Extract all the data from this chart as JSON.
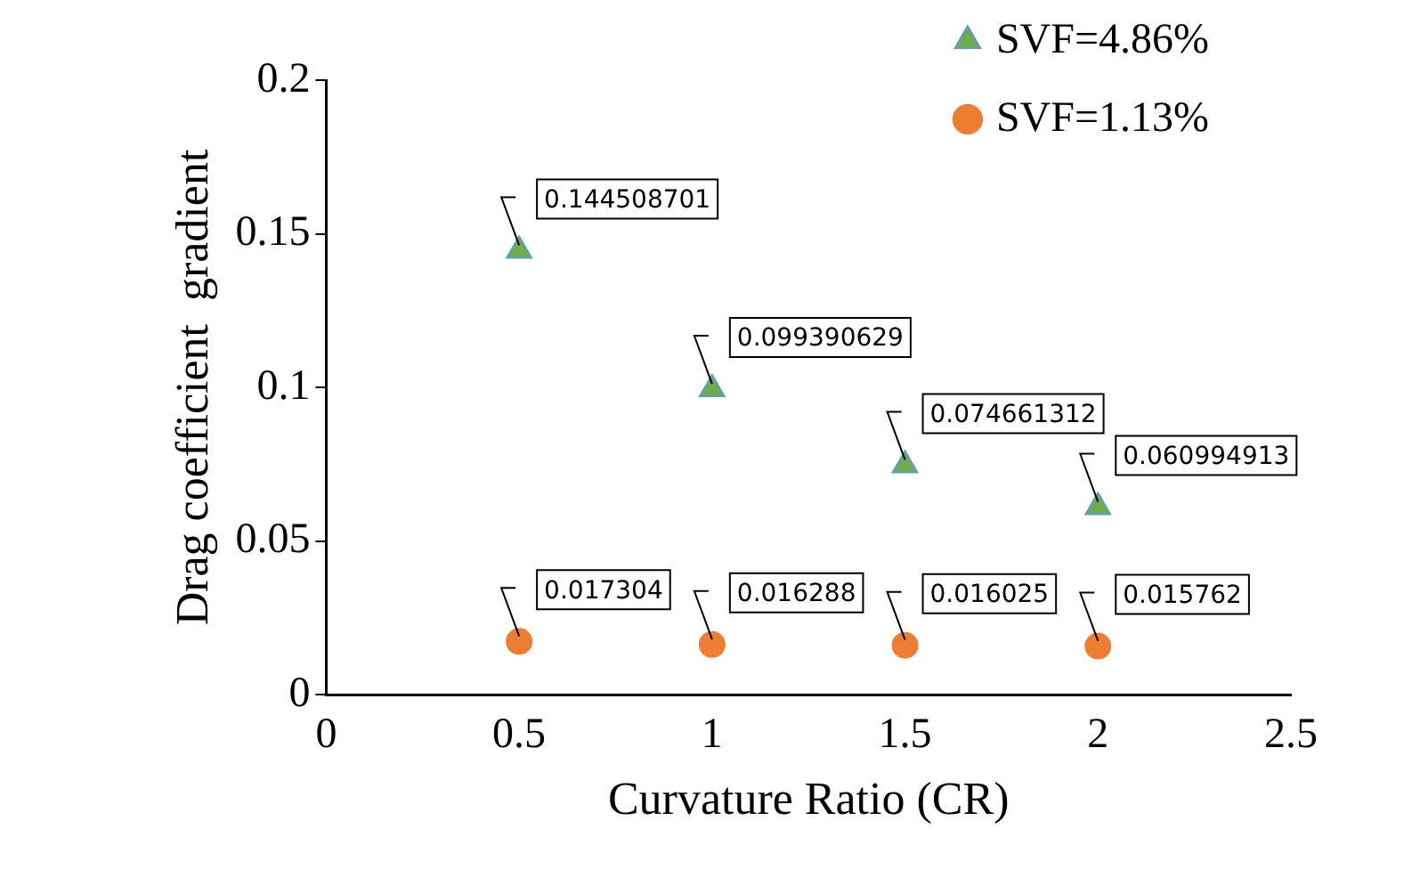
{
  "chart_data": {
    "type": "scatter",
    "xlabel": "Curvature Ratio (CR)",
    "ylabel": "Drag coefficient  gradient",
    "xlim": [
      0,
      2.5
    ],
    "xticks": [
      0,
      0.5,
      1,
      1.5,
      2,
      2.5
    ],
    "ylim": [
      0,
      0.2
    ],
    "yticks": [
      0,
      0.05,
      0.1,
      0.15,
      0.2
    ],
    "grid": false,
    "legend": "top right",
    "data_labels": true,
    "series": [
      {
        "name": "SVF=4.86%",
        "color": "#70ad47",
        "marker": "triangle",
        "x": [
          0.5,
          1,
          1.5,
          2
        ],
        "values": [
          0.144508701,
          0.099390629,
          0.074661312,
          0.060994913
        ]
      },
      {
        "name": "SVF=1.13%",
        "color": "#ed7d31",
        "marker": "circle",
        "x": [
          0.5,
          1,
          1.5,
          2
        ],
        "values": [
          0.017304,
          0.016288,
          0.016025,
          0.015762
        ]
      }
    ]
  }
}
